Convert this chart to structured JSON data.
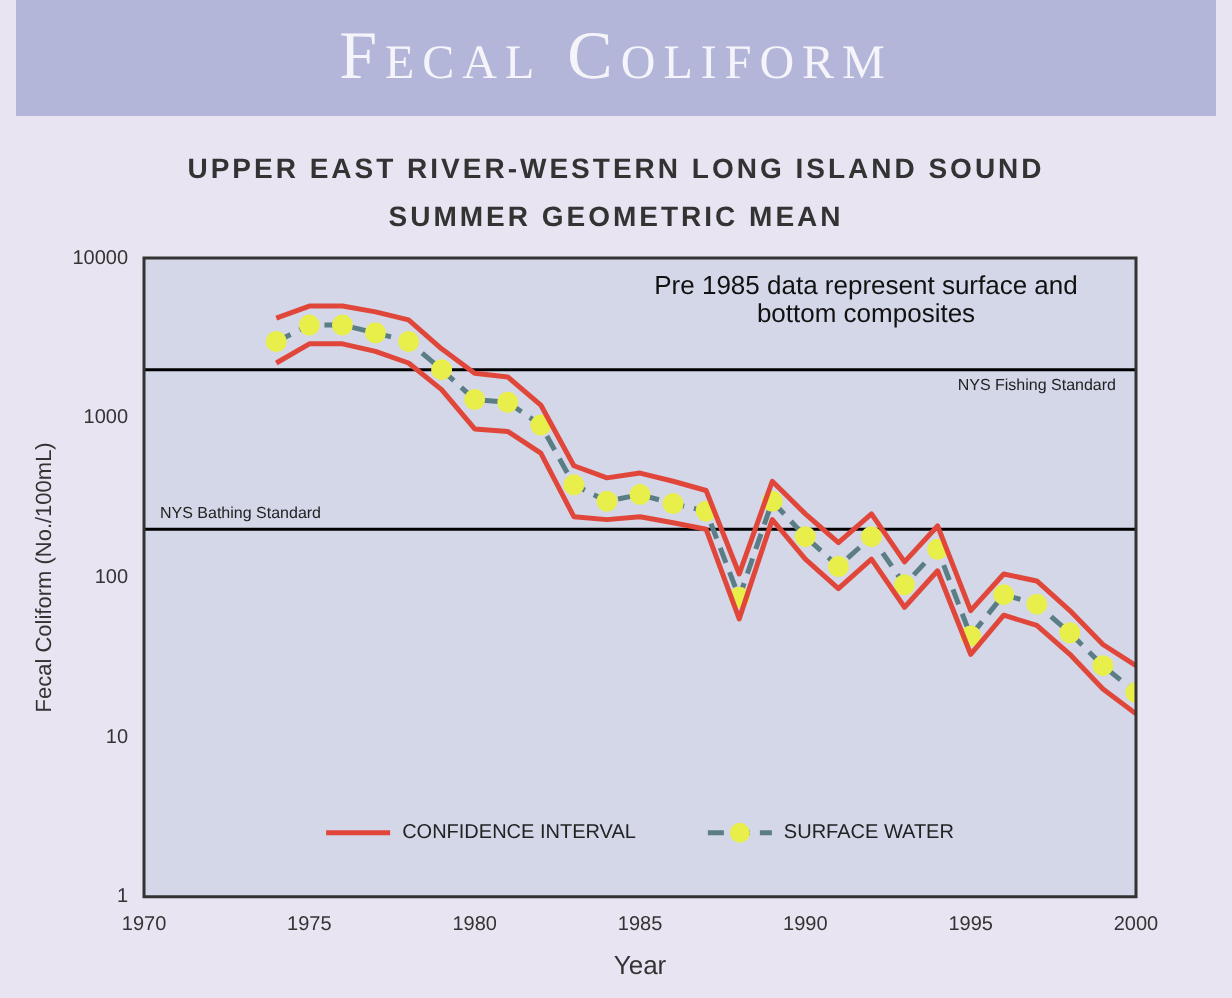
{
  "chart_data": {
    "type": "line",
    "title": "Fecal Coliform",
    "subtitle": "UPPER EAST RIVER-WESTERN LONG ISLAND SOUND\nSUMMER GEOMETRIC MEAN",
    "xlabel": "Year",
    "ylabel": "Fecal Coliform (No./100mL)",
    "x": [
      1974,
      1975,
      1976,
      1977,
      1978,
      1979,
      1980,
      1981,
      1982,
      1983,
      1984,
      1985,
      1986,
      1987,
      1988,
      1989,
      1990,
      1991,
      1992,
      1993,
      1994,
      1995,
      1996,
      1997,
      1998,
      1999,
      2000
    ],
    "series": [
      {
        "name": "CONFIDENCE INTERVAL",
        "color": "#e0473a",
        "line_style": "solid",
        "marker": "none",
        "values": [
          4200,
          5000,
          5000,
          4600,
          4100,
          2700,
          1900,
          1800,
          1200,
          500,
          420,
          450,
          400,
          350,
          105,
          400,
          250,
          165,
          250,
          125,
          210,
          62,
          105,
          95,
          62,
          38,
          28
        ]
      },
      {
        "color": "#e0473a",
        "line_style": "solid",
        "marker": "none",
        "values": [
          2200,
          2900,
          2900,
          2600,
          2200,
          1500,
          850,
          820,
          600,
          240,
          230,
          240,
          220,
          200,
          55,
          230,
          130,
          85,
          130,
          65,
          110,
          33,
          58,
          50,
          33,
          20,
          14
        ]
      },
      {
        "name": "SURFACE WATER",
        "color": "#5b7d86",
        "line_style": "dashed",
        "marker": "circle",
        "values": [
          3000,
          3800,
          3800,
          3400,
          3000,
          2000,
          1300,
          1250,
          900,
          380,
          300,
          330,
          290,
          260,
          75,
          300,
          180,
          117,
          180,
          90,
          150,
          43,
          78,
          68,
          45,
          28,
          19
        ]
      }
    ],
    "xlim": [
      1970,
      2000
    ],
    "xticks": [
      1970,
      1975,
      1980,
      1985,
      1990,
      1995,
      2000
    ],
    "ylim": [
      1,
      10000
    ],
    "yticks": [
      1,
      10,
      100,
      1000,
      10000
    ],
    "log": "y",
    "ref_lines": [
      {
        "axis": "y",
        "value": 2000,
        "label": "NYS Fishing Standard",
        "color": "#000000"
      },
      {
        "axis": "y",
        "value": 200,
        "label": "NYS Bathing Standard",
        "color": "#000000"
      }
    ],
    "annotations": [
      "Pre 1985 data represent surface and bottom composites"
    ],
    "legend": "bottom",
    "grid": false
  }
}
